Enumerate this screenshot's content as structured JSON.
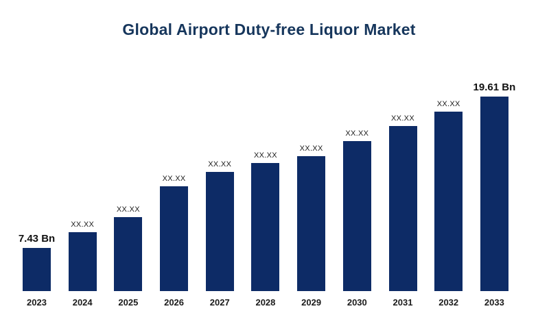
{
  "colors": {
    "bar": "#0d2b66",
    "title": "#16365c",
    "text": "#1a1a1a"
  },
  "chart_data": {
    "type": "bar",
    "title": "Global Airport Duty-free Liquor Market",
    "xlabel": "",
    "ylabel": "",
    "grid": false,
    "legend": false,
    "categories": [
      "2023",
      "2024",
      "2025",
      "2026",
      "2027",
      "2028",
      "2029",
      "2030",
      "2031",
      "2032",
      "2033"
    ],
    "values": [
      7.43,
      8.7,
      9.91,
      12.39,
      13.55,
      14.27,
      14.82,
      16.03,
      17.24,
      18.4,
      19.61
    ],
    "value_labels": [
      "7.43 Bn",
      "XX.XX",
      "XX.XX",
      "XX.XX",
      "XX.XX",
      "XX.XX",
      "XX.XX",
      "XX.XX",
      "XX.XX",
      "XX.XX",
      "19.61 Bn"
    ],
    "label_emphasis": [
      true,
      false,
      false,
      false,
      false,
      false,
      false,
      false,
      false,
      false,
      true
    ],
    "ylim": [
      0,
      21
    ]
  }
}
